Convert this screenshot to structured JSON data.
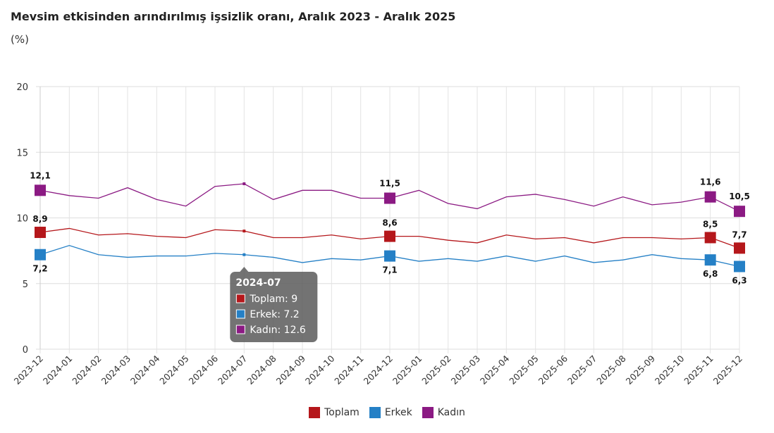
{
  "chart_data": {
    "type": "line",
    "title": "Mevsim etkisinden arındırılmış işsizlik oranı, Aralık 2023 - Aralık 2025",
    "subtitle": "(%)",
    "ylim": [
      0,
      20
    ],
    "yticks": [
      0,
      5,
      10,
      15,
      20
    ],
    "grid": true,
    "legend": "bottom",
    "categories": [
      "2023-12",
      "2024-01",
      "2024-02",
      "2024-03",
      "2024-04",
      "2024-05",
      "2024-06",
      "2024-07",
      "2024-08",
      "2024-09",
      "2024-10",
      "2024-11",
      "2024-12",
      "2025-01",
      "2025-02",
      "2025-03",
      "2025-04",
      "2025-05",
      "2025-06",
      "2025-07",
      "2025-08",
      "2025-09",
      "2025-10",
      "2025-11",
      "2025-12"
    ],
    "series": [
      {
        "name": "Toplam",
        "color": "#b5171b",
        "values": [
          8.9,
          9.2,
          8.7,
          8.8,
          8.6,
          8.5,
          9.1,
          9.0,
          8.5,
          8.5,
          8.7,
          8.4,
          8.6,
          8.6,
          8.3,
          8.1,
          8.7,
          8.4,
          8.5,
          8.1,
          8.5,
          8.5,
          8.4,
          8.5,
          7.7
        ]
      },
      {
        "name": "Erkek",
        "color": "#2580c6",
        "values": [
          7.2,
          7.9,
          7.2,
          7.0,
          7.1,
          7.1,
          7.3,
          7.2,
          7.0,
          6.6,
          6.9,
          6.8,
          7.1,
          6.7,
          6.9,
          6.7,
          7.1,
          6.7,
          7.1,
          6.6,
          6.8,
          7.2,
          6.9,
          6.8,
          6.3
        ]
      },
      {
        "name": "Kadın",
        "color": "#8b1a83",
        "values": [
          12.1,
          11.7,
          11.5,
          12.3,
          11.4,
          10.9,
          12.4,
          12.6,
          11.4,
          12.1,
          12.1,
          11.5,
          11.5,
          12.1,
          11.1,
          10.7,
          11.6,
          11.8,
          11.4,
          10.9,
          11.6,
          11.0,
          11.2,
          11.6,
          10.5
        ]
      }
    ],
    "highlighted_points": [
      0,
      12,
      23,
      24
    ],
    "data_labels": {
      "Toplam": [
        "8,9",
        "8,6",
        "8,5",
        "7,7"
      ],
      "Erkek": [
        "7,2",
        "7,1",
        "6,8",
        "6,3"
      ],
      "Kadın": [
        "12,1",
        "11,5",
        "11,6",
        "10,5"
      ]
    },
    "tooltip": {
      "category": "2024-07",
      "lines": [
        "Toplam: 9",
        "Erkek: 7.2",
        "Kadın: 12.6"
      ]
    }
  }
}
